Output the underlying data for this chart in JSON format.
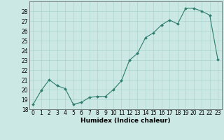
{
  "x": [
    0,
    1,
    2,
    3,
    4,
    5,
    6,
    7,
    8,
    9,
    10,
    11,
    12,
    13,
    14,
    15,
    16,
    17,
    18,
    19,
    20,
    21,
    22,
    23
  ],
  "y": [
    18.5,
    19.9,
    21.0,
    20.4,
    20.1,
    18.5,
    18.7,
    19.2,
    19.3,
    19.3,
    20.0,
    20.9,
    23.0,
    23.7,
    25.3,
    25.8,
    26.6,
    27.1,
    26.7,
    28.3,
    28.3,
    28.0,
    27.6,
    23.1
  ],
  "xlabel": "Humidex (Indice chaleur)",
  "xlim": [
    -0.5,
    23.5
  ],
  "ylim": [
    18,
    29
  ],
  "yticks": [
    18,
    19,
    20,
    21,
    22,
    23,
    24,
    25,
    26,
    27,
    28
  ],
  "xticks": [
    0,
    1,
    2,
    3,
    4,
    5,
    6,
    7,
    8,
    9,
    10,
    11,
    12,
    13,
    14,
    15,
    16,
    17,
    18,
    19,
    20,
    21,
    22,
    23
  ],
  "line_color": "#2e7d6e",
  "marker_color": "#2e7d6e",
  "bg_color": "#cce8e4",
  "grid_color": "#aad4cf",
  "label_fontsize": 6.5,
  "tick_fontsize": 5.5
}
